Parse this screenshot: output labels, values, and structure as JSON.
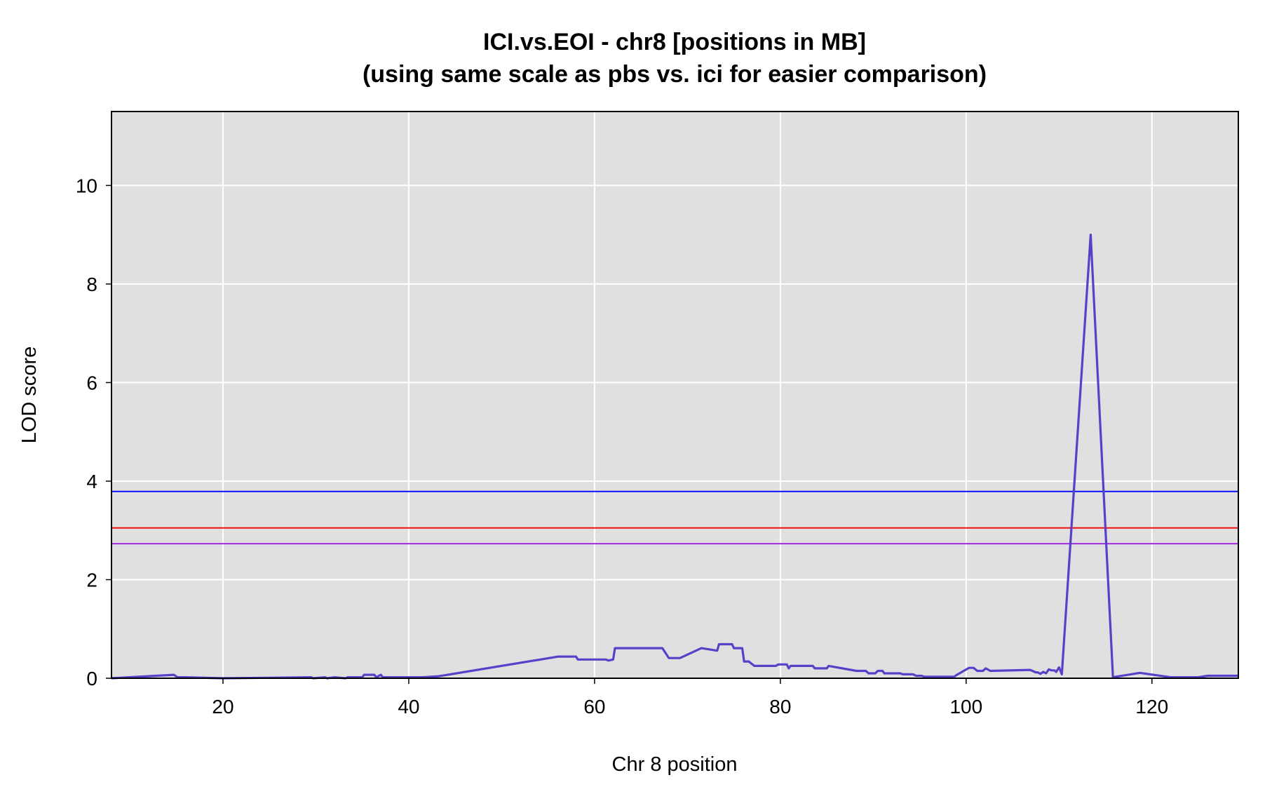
{
  "chart_data": {
    "type": "line",
    "title": "ICI.vs.EOI - chr8 [positions in MB]",
    "subtitle": "(using same scale as pbs vs. ici for easier comparison)",
    "xlabel": "Chr 8 position",
    "ylabel": "LOD score",
    "xlim": [
      8,
      129.3
    ],
    "ylim": [
      0,
      11.5
    ],
    "xticks": [
      20,
      40,
      60,
      80,
      100,
      120
    ],
    "yticks": [
      0,
      2,
      4,
      6,
      8,
      10
    ],
    "grid": true,
    "background": "#e0e0e0",
    "gridColor": "#ffffff",
    "thresholds": [
      {
        "value": 3.79,
        "color": "#0000ff"
      },
      {
        "value": 3.05,
        "color": "#ee0000"
      },
      {
        "value": 2.73,
        "color": "#9a1fe0"
      }
    ],
    "series": [
      {
        "color": "#5a3fc8",
        "x": [
          8.0,
          14.7,
          15.1,
          15.9,
          20.0,
          29.5,
          29.7,
          31.0,
          31.2,
          32.0,
          33.2,
          33.4,
          35.0,
          35.2,
          36.3,
          36.5,
          37.0,
          37.2,
          41.5,
          43.2,
          56.1,
          58.0,
          58.2,
          61.2,
          61.5,
          62.0,
          62.2,
          67.3,
          68.0,
          69.2,
          71.5,
          73.2,
          73.4,
          74.8,
          75.0,
          75.9,
          76.1,
          76.6,
          77.2,
          79.5,
          79.8,
          80.7,
          80.9,
          81.1,
          81.5,
          83.5,
          83.7,
          85.0,
          85.2,
          88.2,
          88.5,
          89.2,
          89.5,
          90.2,
          90.5,
          91.0,
          91.2,
          92.9,
          93.2,
          94.3,
          94.6,
          95.2,
          95.5,
          98.7,
          99.0,
          100.3,
          100.8,
          101.2,
          101.8,
          102.1,
          102.6,
          106.9,
          107.5,
          107.7,
          108.0,
          108.3,
          108.6,
          108.9,
          109.2,
          109.5,
          109.7,
          110.0,
          110.3,
          113.4,
          115.8,
          118.7,
          122.0,
          125.0,
          126.0,
          129.3
        ],
        "y": [
          0.0,
          0.07,
          0.02,
          0.02,
          0.0,
          0.02,
          0.0,
          0.02,
          0.0,
          0.02,
          0.0,
          0.02,
          0.02,
          0.07,
          0.07,
          0.02,
          0.07,
          0.02,
          0.02,
          0.04,
          0.44,
          0.44,
          0.38,
          0.38,
          0.36,
          0.38,
          0.61,
          0.61,
          0.41,
          0.41,
          0.61,
          0.56,
          0.69,
          0.69,
          0.61,
          0.61,
          0.34,
          0.34,
          0.25,
          0.25,
          0.28,
          0.28,
          0.2,
          0.25,
          0.25,
          0.25,
          0.2,
          0.2,
          0.25,
          0.15,
          0.15,
          0.15,
          0.1,
          0.1,
          0.15,
          0.15,
          0.1,
          0.1,
          0.08,
          0.08,
          0.05,
          0.05,
          0.03,
          0.03,
          0.07,
          0.21,
          0.21,
          0.15,
          0.15,
          0.2,
          0.15,
          0.17,
          0.12,
          0.12,
          0.09,
          0.13,
          0.1,
          0.18,
          0.16,
          0.16,
          0.13,
          0.22,
          0.08,
          9.0,
          0.02,
          0.11,
          0.02,
          0.02,
          0.05,
          0.05
        ]
      }
    ]
  }
}
